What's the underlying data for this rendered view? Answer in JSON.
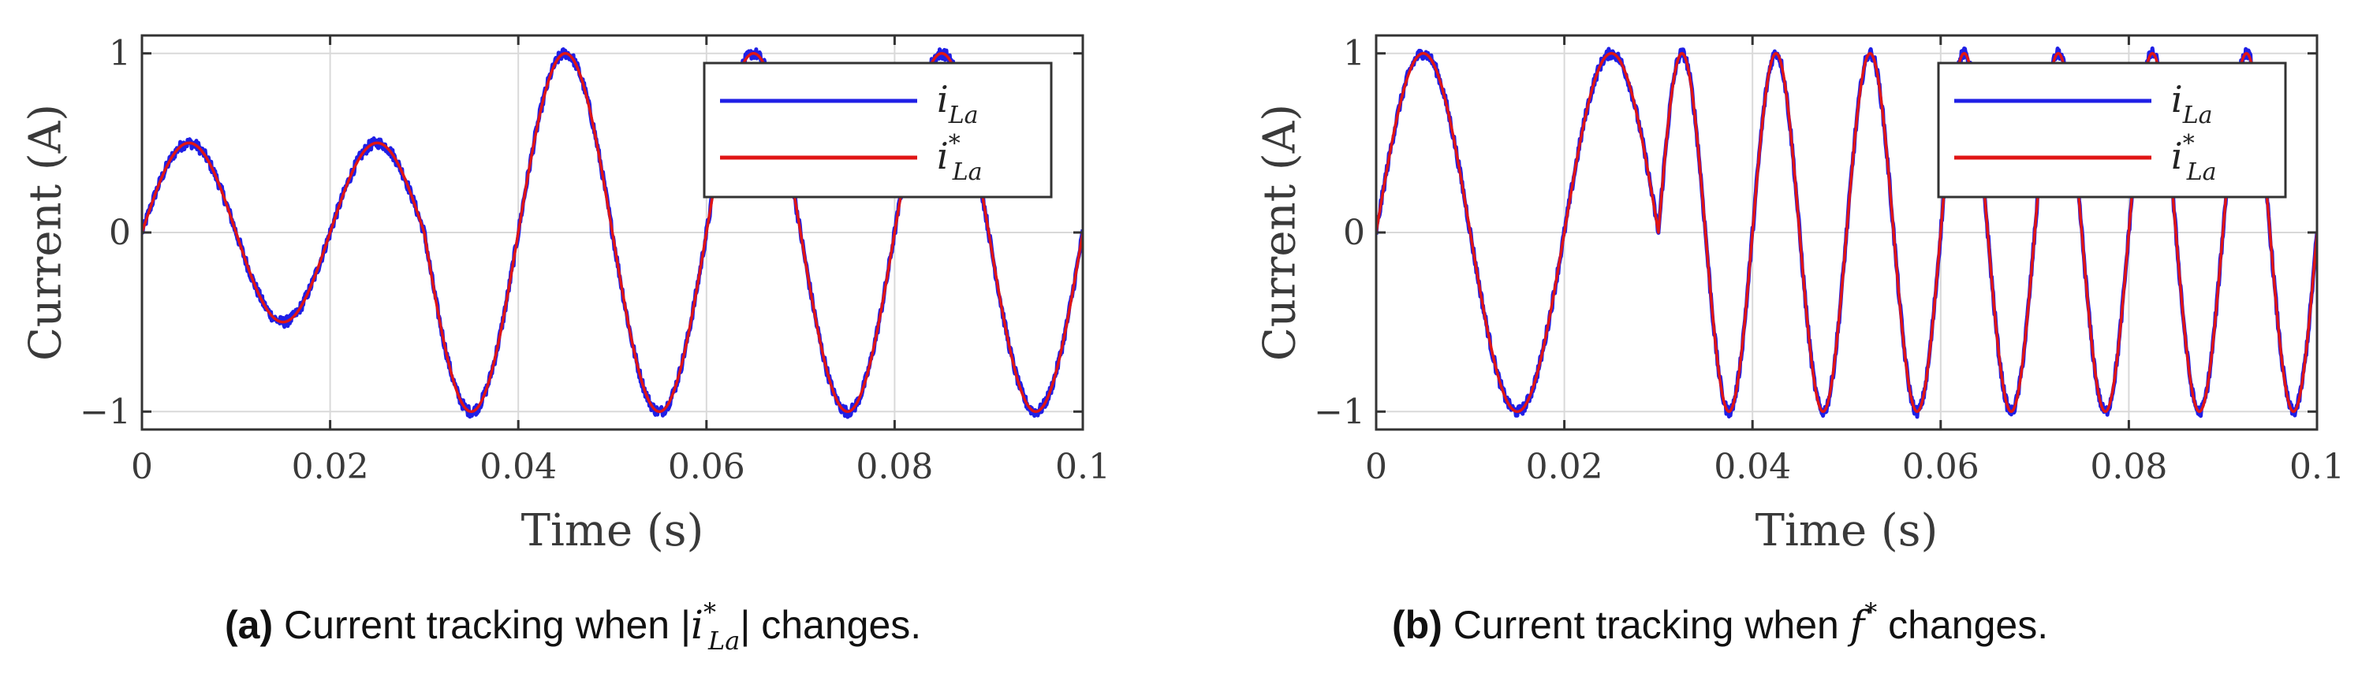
{
  "figure": {
    "colors": {
      "measured": "#1f1fe6",
      "reference": "#e01515",
      "axes": "#333333",
      "grid": "#d9d9d9"
    }
  },
  "chart_data": [
    {
      "type": "line",
      "panel": "a",
      "caption_label": "(a)",
      "caption_text_before": "Current tracking when |",
      "caption_math": "i",
      "caption_math_sup": "*",
      "caption_math_sub": "La",
      "caption_text_after": "| changes.",
      "xlabel": "Time (s)",
      "ylabel": "Current (A)",
      "xlim": [
        0,
        0.1
      ],
      "ylim": [
        -1.1,
        1.1
      ],
      "xticks": [
        0,
        0.02,
        0.04,
        0.06,
        0.08,
        0.1
      ],
      "xtick_labels": [
        "0",
        "0.02",
        "0.04",
        "0.06",
        "0.08",
        "0.1"
      ],
      "yticks": [
        -1,
        0,
        1
      ],
      "ytick_labels": [
        "−1",
        "0",
        "1"
      ],
      "grid": true,
      "legend_position": "top-right",
      "legend": [
        {
          "symbol": "i",
          "sub": "La",
          "sup": ""
        },
        {
          "symbol": "i",
          "sub": "La",
          "sup": "*"
        }
      ],
      "reference_signal": {
        "frequency_hz": 50,
        "segments": [
          {
            "t_start": 0,
            "t_end": 0.03,
            "amplitude": 0.5
          },
          {
            "t_start": 0.03,
            "t_end": 0.1,
            "amplitude": 1.0
          }
        ]
      },
      "series": [
        {
          "name": "i_La (measured)",
          "color": "#1f1fe6",
          "ripple_amplitude": 0.03
        },
        {
          "name": "i*_La (reference)",
          "color": "#e01515",
          "ripple_amplitude": 0
        }
      ]
    },
    {
      "type": "line",
      "panel": "b",
      "caption_label": "(b)",
      "caption_text_before": "Current tracking when ",
      "caption_math": "f",
      "caption_math_sup": "*",
      "caption_math_sub": "",
      "caption_text_after": " changes.",
      "xlabel": "Time (s)",
      "ylabel": "Current (A)",
      "xlim": [
        0,
        0.1
      ],
      "ylim": [
        -1.1,
        1.1
      ],
      "xticks": [
        0,
        0.02,
        0.04,
        0.06,
        0.08,
        0.1
      ],
      "xtick_labels": [
        "0",
        "0.02",
        "0.04",
        "0.06",
        "0.08",
        "0.1"
      ],
      "yticks": [
        -1,
        0,
        1
      ],
      "ytick_labels": [
        "−1",
        "0",
        "1"
      ],
      "grid": true,
      "legend_position": "top-right",
      "legend": [
        {
          "symbol": "i",
          "sub": "La",
          "sup": ""
        },
        {
          "symbol": "i",
          "sub": "La",
          "sup": "*"
        }
      ],
      "reference_signal": {
        "amplitude": 1.0,
        "segments": [
          {
            "t_start": 0,
            "t_end": 0.03,
            "frequency_hz": 50
          },
          {
            "t_start": 0.03,
            "t_end": 0.1,
            "frequency_hz": 100
          }
        ]
      },
      "series": [
        {
          "name": "i_La (measured)",
          "color": "#1f1fe6",
          "ripple_amplitude": 0.03
        },
        {
          "name": "i*_La (reference)",
          "color": "#e01515",
          "ripple_amplitude": 0
        }
      ]
    }
  ]
}
